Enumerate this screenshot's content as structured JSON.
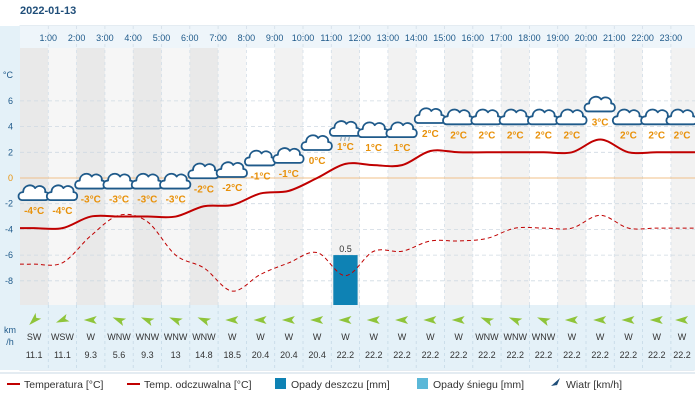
{
  "chart_data": {
    "type": "line",
    "date": "2022-01-13",
    "hours": [
      "1:00",
      "2:00",
      "3:00",
      "4:00",
      "5:00",
      "6:00",
      "7:00",
      "8:00",
      "9:00",
      "10:00",
      "11:00",
      "12:00",
      "13:00",
      "14:00",
      "15:00",
      "16:00",
      "17:00",
      "18:00",
      "19:00",
      "20:00",
      "21:00",
      "22:00",
      "23:00"
    ],
    "y_unit": "°C",
    "y_ticks": [
      6,
      4,
      2,
      0,
      -2,
      -4,
      -6,
      -8
    ],
    "ylim": [
      -10,
      8
    ],
    "temperature_labels": [
      "-4°C",
      "-4°C",
      "-3°C",
      "-3°C",
      "-3°C",
      "-3°C",
      "-2°C",
      "-2°C",
      "-1°C",
      "-1°C",
      "0°C",
      "1°C",
      "1°C",
      "1°C",
      "2°C",
      "2°C",
      "2°C",
      "2°C",
      "2°C",
      "2°C",
      "3°C",
      "2°C",
      "2°C",
      "2°C"
    ],
    "weather_icons": [
      "cloud",
      "cloud",
      "cloud",
      "cloud",
      "cloud",
      "cloud",
      "cloud",
      "cloud",
      "cloud",
      "cloud",
      "cloud",
      "rain-cloud",
      "cloud",
      "cloud",
      "cloud",
      "cloud",
      "cloud",
      "cloud",
      "cloud",
      "cloud",
      "cloud",
      "cloud",
      "cloud",
      "cloud"
    ],
    "series": [
      {
        "name": "Temperatura [°C]",
        "style": "solid",
        "color": "#c00000",
        "x": [
          0.5,
          1.5,
          2.5,
          3.5,
          4.5,
          5.5,
          6.5,
          7.5,
          8.5,
          9.5,
          10.5,
          11.5,
          12.5,
          13.5,
          14.5,
          15.5,
          16.5,
          17.5,
          18.5,
          19.5,
          20.5,
          21.5,
          22.5,
          23.5
        ],
        "values": [
          -3.9,
          -3.9,
          -3.0,
          -3.0,
          -3.0,
          -3.0,
          -2.2,
          -2.1,
          -1.2,
          -1.0,
          0.0,
          1.1,
          1.0,
          1.0,
          2.1,
          2.0,
          2.0,
          2.0,
          2.0,
          2.0,
          3.0,
          2.0,
          2.0,
          2.0
        ]
      },
      {
        "name": "Temp. odczuwalna [°C]",
        "style": "dashed",
        "color": "#c00000",
        "x": [
          0.5,
          1.5,
          2.5,
          3.5,
          4.5,
          5.5,
          6.5,
          7.5,
          8.5,
          9.5,
          10.5,
          11.5,
          12.5,
          13.5,
          14.5,
          15.5,
          16.5,
          17.5,
          18.5,
          19.5,
          20.5,
          21.5,
          22.5,
          23.5
        ],
        "values": [
          -6.7,
          -6.6,
          -4.5,
          -2.9,
          -3.4,
          -6.0,
          -7.0,
          -8.8,
          -7.5,
          -6.6,
          -5.8,
          -7.6,
          -5.7,
          -5.7,
          -4.9,
          -4.9,
          -4.7,
          -3.9,
          -3.9,
          -3.9,
          -2.9,
          -3.9,
          -3.9,
          -3.9
        ]
      }
    ],
    "precipitation": {
      "name": "Opady deszczu [mm]",
      "color": "#0e82b4",
      "hour_index": 11,
      "value": 0.5,
      "label": "0.5"
    },
    "wind_label": "km\n/h",
    "wind_label_top": "km",
    "wind_label_bottom": "/h",
    "wind_dirs": [
      "SW",
      "WSW",
      "W",
      "WNW",
      "WNW",
      "WNW",
      "WNW",
      "W",
      "W",
      "W",
      "W",
      "W",
      "W",
      "W",
      "W",
      "W",
      "WNW",
      "WNW",
      "WNW",
      "W",
      "W",
      "W",
      "W",
      "W"
    ],
    "wind_speeds": [
      "11.1",
      "11.1",
      "9.3",
      "5.6",
      "9.3",
      "13",
      "14.8",
      "18.5",
      "20.4",
      "20.4",
      "20.4",
      "22.2",
      "22.2",
      "22.2",
      "22.2",
      "22.2",
      "22.2",
      "22.2",
      "22.2",
      "22.2",
      "22.2",
      "22.2",
      "22.2",
      "22.2"
    ],
    "legend": [
      {
        "label": "Temperatura [°C]",
        "kind": "line",
        "color": "#c00000"
      },
      {
        "label": "Temp. odczuwalna [°C]",
        "kind": "line",
        "color": "#c00000"
      },
      {
        "label": "Opady deszczu [mm]",
        "kind": "box",
        "color": "#0e82b4"
      },
      {
        "label": "Opady śniegu [mm]",
        "kind": "box",
        "color": "#5bb8d8"
      },
      {
        "label": "Wiatr [km/h]",
        "kind": "arrow",
        "color": "#1f4e79"
      }
    ],
    "colors": {
      "title": "#1f4e79",
      "axis_text": "#1f5a8a",
      "temp_label": "#e8910a",
      "band_dark": "#f2f2f2",
      "band_light": "#ffffff",
      "wind_panel": "#e4f1f8",
      "zero_line": "#f0c08a",
      "wind_arrow": "#8fc43a",
      "cloud_stroke": "#1f5a8a"
    }
  }
}
